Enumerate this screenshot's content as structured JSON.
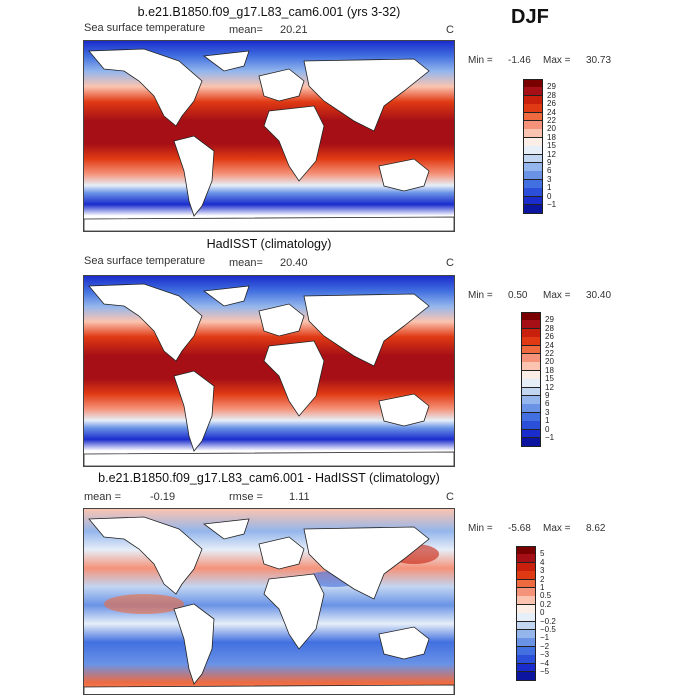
{
  "season": "DJF",
  "chart_data": [
    {
      "type": "heatmap",
      "title": "b.e21.B1850.f09_g17.L83_cam6.001 (yrs 3-32)",
      "left_label": "Sea surface temperature",
      "mean_label": "mean=",
      "mean": "20.21",
      "units": "C",
      "min_label": "Min =",
      "min": "-1.46",
      "max_label": "Max =",
      "max": "30.73",
      "colorbar": {
        "levels": [
          "29",
          "28",
          "26",
          "24",
          "22",
          "20",
          "18",
          "15",
          "12",
          "9",
          "6",
          "3",
          "1",
          "0",
          "−1"
        ],
        "colors": [
          "#7a0000",
          "#a50f15",
          "#c8200c",
          "#e03a14",
          "#ef6a3e",
          "#f5937a",
          "#fbc4b0",
          "#fbeee6",
          "#e6eef8",
          "#c2d6f2",
          "#94b6ec",
          "#6a93e6",
          "#4270e0",
          "#2b4fd8",
          "#1a2ccc",
          "#0b15a0"
        ]
      }
    },
    {
      "type": "heatmap",
      "title": "HadISST (climatology)",
      "left_label": "Sea surface temperature",
      "mean_label": "mean=",
      "mean": "20.40",
      "units": "C",
      "min_label": "Min =",
      "min": "0.50",
      "max_label": "Max =",
      "max": "30.40",
      "colorbar": {
        "levels": [
          "29",
          "28",
          "26",
          "24",
          "22",
          "20",
          "18",
          "15",
          "12",
          "9",
          "6",
          "3",
          "1",
          "0",
          "−1"
        ],
        "colors": [
          "#7a0000",
          "#a50f15",
          "#c8200c",
          "#e03a14",
          "#ef6a3e",
          "#f5937a",
          "#fbc4b0",
          "#fbeee6",
          "#e6eef8",
          "#c2d6f2",
          "#94b6ec",
          "#6a93e6",
          "#4270e0",
          "#2b4fd8",
          "#1a2ccc",
          "#0b15a0"
        ]
      }
    },
    {
      "type": "heatmap",
      "title": "b.e21.B1850.f09_g17.L83_cam6.001 - HadISST (climatology)",
      "mean_label": "mean =",
      "mean": "-0.19",
      "rmse_label": "rmse =",
      "rmse": "1.11",
      "units": "C",
      "min_label": "Min =",
      "min": "-5.68",
      "max_label": "Max =",
      "max": "8.62",
      "colorbar": {
        "levels": [
          "5",
          "4",
          "3",
          "2",
          "1",
          "0.5",
          "0.2",
          "0",
          "−0.2",
          "−0.5",
          "−1",
          "−2",
          "−3",
          "−4",
          "−5"
        ],
        "colors": [
          "#7a0000",
          "#a50f15",
          "#c8200c",
          "#e03a14",
          "#ef6a3e",
          "#f5937a",
          "#fbc4b0",
          "#fbeee6",
          "#e6eef8",
          "#c2d6f2",
          "#94b6ec",
          "#6a93e6",
          "#4270e0",
          "#2b4fd8",
          "#1a2ccc",
          "#0b15a0"
        ]
      }
    }
  ]
}
